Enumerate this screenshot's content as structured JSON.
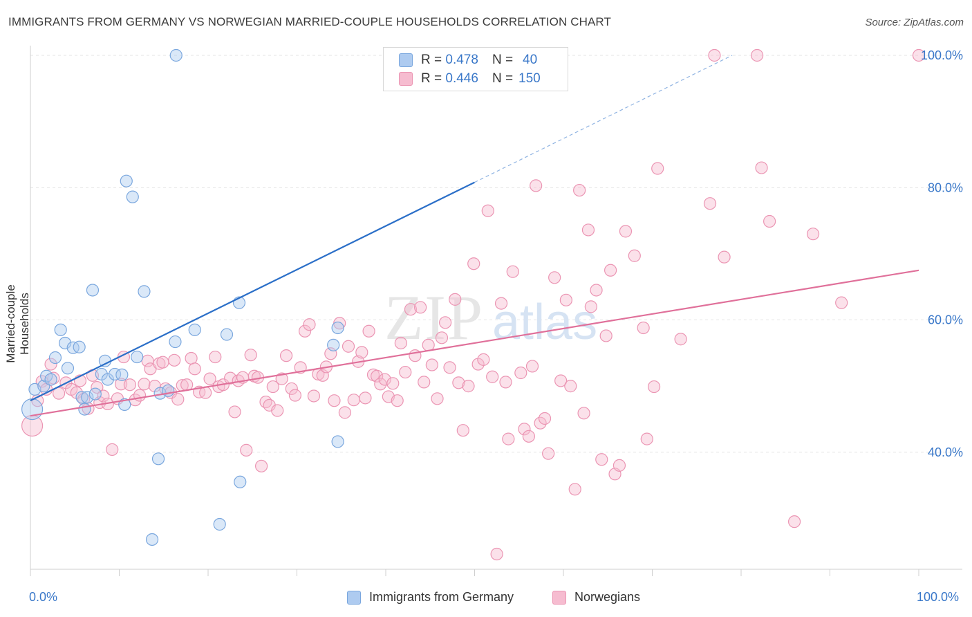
{
  "header": {
    "title": "IMMIGRANTS FROM GERMANY VS NORWEGIAN MARRIED-COUPLE HOUSEHOLDS CORRELATION CHART",
    "source": "Source: ZipAtlas.com"
  },
  "legend": {
    "rows": [
      {
        "r_label": "R =",
        "r_value": "0.478",
        "n_label": "N =",
        "n_value": "40"
      },
      {
        "r_label": "R =",
        "r_value": "0.446",
        "n_label": "N =",
        "n_value": "150"
      }
    ],
    "bottom": [
      {
        "label": "Immigrants from Germany"
      },
      {
        "label": "Norwegians"
      }
    ]
  },
  "colors": {
    "blue_fill": "#aecbf0",
    "blue_stroke": "#7aa7de",
    "blue_line": "#2b6fc8",
    "pink_fill": "#f6bcd0",
    "pink_stroke": "#eb95b3",
    "pink_line": "#e0709a",
    "tick_text": "#3a78c9"
  },
  "chart_data": {
    "type": "scatter",
    "ylabel": "Married-couple Households",
    "xlabel": "",
    "xlim": [
      0,
      100
    ],
    "ylim": [
      20,
      100
    ],
    "x_tick_labels": [
      "0.0%",
      "100.0%"
    ],
    "y_ticks": [
      40,
      60,
      80,
      100
    ],
    "y_tick_labels": [
      "40.0%",
      "60.0%",
      "80.0%",
      "100.0%"
    ],
    "grid": true,
    "series": [
      {
        "name": "Immigrants from Germany",
        "color": "blue",
        "trend": {
          "x": [
            0,
            50
          ],
          "y": [
            47.8,
            80.8
          ],
          "dashed_extension": {
            "x": [
              50,
              79
            ],
            "y": [
              80.8,
              100
            ]
          }
        },
        "points": [
          [
            0.2,
            46.5
          ],
          [
            0.5,
            49.5
          ],
          [
            1.5,
            50.0
          ],
          [
            1.8,
            51.5
          ],
          [
            2.3,
            51.0
          ],
          [
            2.8,
            54.3
          ],
          [
            3.4,
            58.5
          ],
          [
            3.9,
            56.5
          ],
          [
            4.2,
            52.7
          ],
          [
            4.8,
            55.8
          ],
          [
            5.5,
            55.9
          ],
          [
            5.8,
            48.3
          ],
          [
            6.1,
            46.5
          ],
          [
            6.4,
            48.3
          ],
          [
            7.0,
            64.5
          ],
          [
            7.3,
            48.8
          ],
          [
            8.0,
            51.8
          ],
          [
            8.4,
            53.8
          ],
          [
            8.7,
            51.0
          ],
          [
            9.5,
            51.8
          ],
          [
            10.3,
            51.7
          ],
          [
            10.6,
            47.2
          ],
          [
            10.8,
            81.0
          ],
          [
            11.5,
            78.6
          ],
          [
            12.0,
            54.4
          ],
          [
            12.8,
            64.3
          ],
          [
            13.7,
            26.8
          ],
          [
            14.4,
            39.0
          ],
          [
            14.6,
            48.9
          ],
          [
            15.5,
            49.3
          ],
          [
            16.4,
            100.0
          ],
          [
            16.3,
            56.7
          ],
          [
            18.5,
            58.5
          ],
          [
            21.3,
            29.1
          ],
          [
            22.1,
            57.8
          ],
          [
            23.5,
            62.6
          ],
          [
            23.6,
            35.5
          ],
          [
            34.1,
            56.2
          ],
          [
            34.6,
            41.6
          ],
          [
            34.6,
            58.8
          ]
        ]
      },
      {
        "name": "Norwegians",
        "color": "pink",
        "trend": {
          "x": [
            0,
            100
          ],
          "y": [
            45.5,
            67.5
          ]
        },
        "points": [
          [
            0.2,
            44.0
          ],
          [
            0.8,
            47.8
          ],
          [
            1.3,
            50.7
          ],
          [
            1.8,
            49.5
          ],
          [
            2.3,
            53.3
          ],
          [
            2.6,
            51.2
          ],
          [
            3.2,
            48.9
          ],
          [
            4.0,
            50.5
          ],
          [
            4.6,
            49.5
          ],
          [
            5.2,
            49.0
          ],
          [
            5.6,
            50.8
          ],
          [
            6.0,
            48.0
          ],
          [
            6.5,
            46.6
          ],
          [
            7.0,
            51.6
          ],
          [
            7.5,
            49.8
          ],
          [
            7.8,
            47.5
          ],
          [
            8.2,
            48.5
          ],
          [
            8.7,
            47.3
          ],
          [
            9.2,
            40.4
          ],
          [
            9.8,
            48.1
          ],
          [
            10.2,
            50.3
          ],
          [
            10.5,
            54.4
          ],
          [
            11.2,
            50.2
          ],
          [
            11.8,
            47.9
          ],
          [
            12.3,
            48.6
          ],
          [
            12.8,
            50.3
          ],
          [
            13.2,
            53.8
          ],
          [
            13.5,
            52.6
          ],
          [
            14.0,
            50.0
          ],
          [
            14.5,
            53.4
          ],
          [
            14.9,
            53.6
          ],
          [
            15.2,
            49.6
          ],
          [
            15.8,
            49.0
          ],
          [
            16.2,
            53.9
          ],
          [
            16.6,
            48.0
          ],
          [
            17.1,
            50.1
          ],
          [
            17.6,
            50.2
          ],
          [
            18.1,
            54.2
          ],
          [
            18.5,
            52.6
          ],
          [
            19.0,
            49.1
          ],
          [
            19.7,
            49.0
          ],
          [
            20.2,
            51.1
          ],
          [
            20.8,
            54.4
          ],
          [
            21.2,
            49.9
          ],
          [
            21.7,
            50.2
          ],
          [
            22.5,
            51.2
          ],
          [
            23.0,
            46.1
          ],
          [
            23.4,
            50.8
          ],
          [
            23.9,
            51.3
          ],
          [
            24.3,
            40.3
          ],
          [
            24.8,
            54.7
          ],
          [
            25.2,
            51.5
          ],
          [
            25.6,
            51.3
          ],
          [
            26.0,
            37.9
          ],
          [
            26.5,
            47.6
          ],
          [
            26.9,
            47.1
          ],
          [
            27.3,
            49.9
          ],
          [
            27.8,
            46.3
          ],
          [
            28.3,
            51.1
          ],
          [
            28.8,
            54.6
          ],
          [
            29.4,
            49.6
          ],
          [
            29.8,
            48.6
          ],
          [
            30.4,
            52.8
          ],
          [
            30.9,
            58.3
          ],
          [
            31.4,
            59.3
          ],
          [
            31.9,
            48.5
          ],
          [
            32.4,
            51.8
          ],
          [
            32.9,
            51.6
          ],
          [
            33.3,
            52.9
          ],
          [
            33.8,
            54.9
          ],
          [
            34.2,
            47.8
          ],
          [
            34.8,
            59.5
          ],
          [
            35.4,
            46.0
          ],
          [
            35.8,
            56.0
          ],
          [
            36.4,
            47.9
          ],
          [
            36.9,
            53.7
          ],
          [
            37.3,
            55.1
          ],
          [
            37.7,
            48.2
          ],
          [
            38.1,
            58.3
          ],
          [
            38.6,
            51.7
          ],
          [
            39.0,
            51.5
          ],
          [
            39.4,
            50.3
          ],
          [
            39.9,
            51.0
          ],
          [
            40.3,
            48.4
          ],
          [
            40.8,
            50.4
          ],
          [
            41.3,
            47.8
          ],
          [
            41.7,
            56.5
          ],
          [
            42.2,
            52.1
          ],
          [
            42.8,
            61.6
          ],
          [
            43.3,
            54.6
          ],
          [
            43.9,
            61.9
          ],
          [
            44.3,
            50.6
          ],
          [
            44.8,
            56.2
          ],
          [
            45.2,
            53.2
          ],
          [
            45.8,
            48.1
          ],
          [
            46.3,
            57.3
          ],
          [
            46.7,
            59.6
          ],
          [
            47.2,
            52.8
          ],
          [
            47.8,
            63.1
          ],
          [
            48.2,
            50.5
          ],
          [
            48.7,
            43.3
          ],
          [
            49.3,
            50.0
          ],
          [
            49.9,
            68.5
          ],
          [
            50.4,
            53.3
          ],
          [
            51.0,
            54.0
          ],
          [
            51.5,
            76.5
          ],
          [
            52.0,
            51.4
          ],
          [
            52.5,
            24.6
          ],
          [
            53.0,
            62.5
          ],
          [
            53.5,
            50.6
          ],
          [
            53.8,
            42.0
          ],
          [
            54.3,
            67.3
          ],
          [
            55.2,
            52.0
          ],
          [
            55.6,
            43.5
          ],
          [
            56.1,
            42.4
          ],
          [
            56.5,
            53.0
          ],
          [
            56.9,
            80.3
          ],
          [
            57.4,
            44.4
          ],
          [
            57.9,
            45.1
          ],
          [
            58.3,
            39.8
          ],
          [
            59.0,
            66.4
          ],
          [
            59.7,
            50.8
          ],
          [
            60.3,
            63.0
          ],
          [
            60.8,
            50.0
          ],
          [
            61.3,
            34.4
          ],
          [
            61.8,
            79.6
          ],
          [
            62.3,
            45.9
          ],
          [
            62.8,
            73.6
          ],
          [
            63.1,
            62.0
          ],
          [
            63.7,
            64.5
          ],
          [
            64.3,
            38.9
          ],
          [
            64.8,
            57.6
          ],
          [
            65.3,
            67.5
          ],
          [
            65.8,
            36.7
          ],
          [
            66.3,
            38.0
          ],
          [
            67.0,
            73.4
          ],
          [
            68.0,
            69.7
          ],
          [
            69.0,
            58.8
          ],
          [
            69.4,
            42.0
          ],
          [
            70.2,
            49.9
          ],
          [
            70.6,
            82.9
          ],
          [
            73.2,
            57.1
          ],
          [
            76.5,
            77.6
          ],
          [
            77.0,
            100.0
          ],
          [
            78.1,
            69.5
          ],
          [
            81.8,
            100.0
          ],
          [
            82.3,
            83.0
          ],
          [
            83.2,
            74.9
          ],
          [
            86.0,
            29.5
          ],
          [
            88.1,
            73.0
          ],
          [
            91.3,
            62.6
          ],
          [
            100.0,
            100.0
          ]
        ]
      }
    ]
  }
}
